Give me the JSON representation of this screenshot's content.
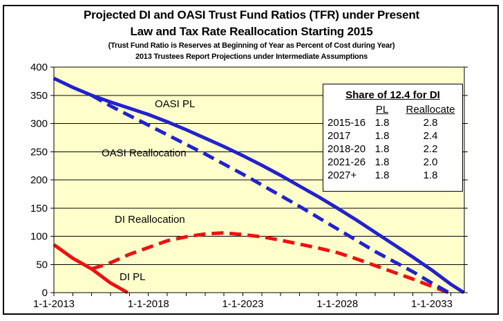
{
  "figure": {
    "title_line1": "Projected DI and OASI Trust Fund Ratios (TFR) under Present",
    "title_line2": "Law and Tax Rate Reallocation Starting 2015",
    "subtitle_line1": "(Trust Fund Ratio is Reserves at Beginning of Year as Percent of Cost during Year)",
    "subtitle_line2": "2013 Trustees Report Projections under Intermediate Assumptions"
  },
  "chart_data": {
    "type": "line",
    "title": "Projected DI and OASI Trust Fund Ratios (TFR) under Present Law and Tax Rate Reallocation Starting 2015",
    "xlabel": "",
    "ylabel": "",
    "grid": true,
    "x_axis": {
      "min": 2013,
      "max": 2034.72,
      "minor_tick_years": 1,
      "labels": [
        {
          "year": 2013,
          "text": "1-1-2013"
        },
        {
          "year": 2018,
          "text": "1-1-2018"
        },
        {
          "year": 2023,
          "text": "1-1-2023"
        },
        {
          "year": 2028,
          "text": "1-1-2028"
        },
        {
          "year": 2033,
          "text": "1-1-2033"
        }
      ]
    },
    "y_axis": {
      "min": 0,
      "max": 400,
      "tick_step": 50
    },
    "colors": {
      "plot_bg": "#FFFFCC",
      "oasi_blue": "#2222CC",
      "di_red": "#EE1111",
      "grid": "#000000"
    },
    "series": [
      {
        "id": "di-reallocation",
        "name": "DI Reallocation",
        "color": "#EE1111",
        "line_style": "dashed",
        "points": [
          [
            2015,
            42
          ],
          [
            2016,
            53
          ],
          [
            2017,
            68
          ],
          [
            2018,
            80
          ],
          [
            2019,
            92
          ],
          [
            2020,
            99
          ],
          [
            2021,
            104
          ],
          [
            2022,
            106
          ],
          [
            2023,
            103
          ],
          [
            2024,
            99
          ],
          [
            2025,
            93
          ],
          [
            2026,
            86
          ],
          [
            2027,
            79
          ],
          [
            2028,
            71
          ],
          [
            2029,
            60
          ],
          [
            2030,
            48
          ],
          [
            2031,
            36
          ],
          [
            2032,
            24
          ],
          [
            2033,
            11
          ],
          [
            2033.9,
            0
          ]
        ]
      },
      {
        "id": "oasi-reallocation",
        "name": "OASI Reallocation",
        "color": "#2222CC",
        "line_style": "dashed",
        "points": [
          [
            2015,
            350
          ],
          [
            2016,
            331
          ],
          [
            2017,
            314
          ],
          [
            2018,
            297
          ],
          [
            2019,
            280
          ],
          [
            2020,
            263
          ],
          [
            2021,
            246
          ],
          [
            2022,
            228
          ],
          [
            2023,
            210
          ],
          [
            2024,
            191
          ],
          [
            2025,
            172
          ],
          [
            2026,
            153
          ],
          [
            2027,
            133
          ],
          [
            2028,
            113
          ],
          [
            2029,
            93
          ],
          [
            2030,
            73
          ],
          [
            2031,
            55
          ],
          [
            2032,
            37
          ],
          [
            2033,
            17
          ],
          [
            2033.9,
            0
          ]
        ]
      },
      {
        "id": "di-pl",
        "name": "DI PL",
        "color": "#EE1111",
        "line_style": "solid",
        "points": [
          [
            2013,
            85
          ],
          [
            2014,
            61
          ],
          [
            2015,
            42
          ],
          [
            2016,
            17
          ],
          [
            2016.9,
            0
          ]
        ]
      },
      {
        "id": "oasi-pl",
        "name": "OASI PL",
        "color": "#2222CC",
        "line_style": "solid",
        "points": [
          [
            2013,
            380
          ],
          [
            2014,
            364
          ],
          [
            2015,
            350
          ],
          [
            2016,
            338
          ],
          [
            2017,
            327
          ],
          [
            2018,
            316
          ],
          [
            2019,
            303
          ],
          [
            2020,
            289
          ],
          [
            2021,
            274
          ],
          [
            2022,
            259
          ],
          [
            2023,
            243
          ],
          [
            2024,
            226
          ],
          [
            2025,
            208
          ],
          [
            2026,
            189
          ],
          [
            2027,
            170
          ],
          [
            2028,
            150
          ],
          [
            2029,
            129
          ],
          [
            2030,
            107
          ],
          [
            2031,
            85
          ],
          [
            2032,
            63
          ],
          [
            2033,
            40
          ],
          [
            2034,
            15
          ],
          [
            2034.7,
            0
          ]
        ]
      }
    ],
    "annotations": {
      "oasi_pl": "OASI PL",
      "oasi_realloc": "OASI Reallocation",
      "di_realloc": "DI Reallocation",
      "di_pl": "DI PL"
    },
    "inset_table": {
      "title": "Share of 12.4 for DI",
      "col_headers": {
        "pl": "PL",
        "realloc": "Reallocate"
      },
      "rows": [
        {
          "period": "2015-16",
          "pl": "1.8",
          "realloc": "2.8"
        },
        {
          "period": "2017",
          "pl": "1.8",
          "realloc": "2.4"
        },
        {
          "period": "2018-20",
          "pl": "1.8",
          "realloc": "2.2"
        },
        {
          "period": "2021-26",
          "pl": "1.8",
          "realloc": "2.0"
        },
        {
          "period": "2027+",
          "pl": "1.8",
          "realloc": "1.8"
        }
      ]
    }
  }
}
